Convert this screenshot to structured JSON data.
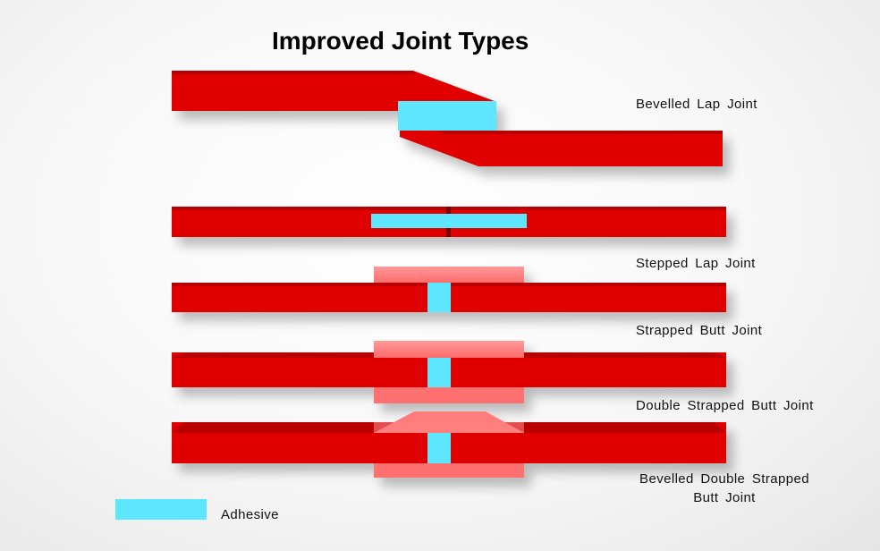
{
  "title": "Improved Joint Types",
  "labels": {
    "bevelled_lap": "Bevelled  Lap  Joint",
    "stepped_lap": "Stepped  Lap  Joint",
    "strapped_butt": "Strapped  Butt  Joint",
    "double_strapped_butt": "Double  Strapped  Butt  Joint",
    "bevelled_double_strapped_line1": "Bevelled  Double  Strapped",
    "bevelled_double_strapped_line2": "Butt  Joint"
  },
  "legend": {
    "adhesive_label": "Adhesive"
  },
  "colors": {
    "adherend_front": "#e00000",
    "adherend_top": "#b80000",
    "strap": "#ff6b6b",
    "strap_top": "#ff9a9a",
    "adhesive": "#5ee6ff"
  }
}
